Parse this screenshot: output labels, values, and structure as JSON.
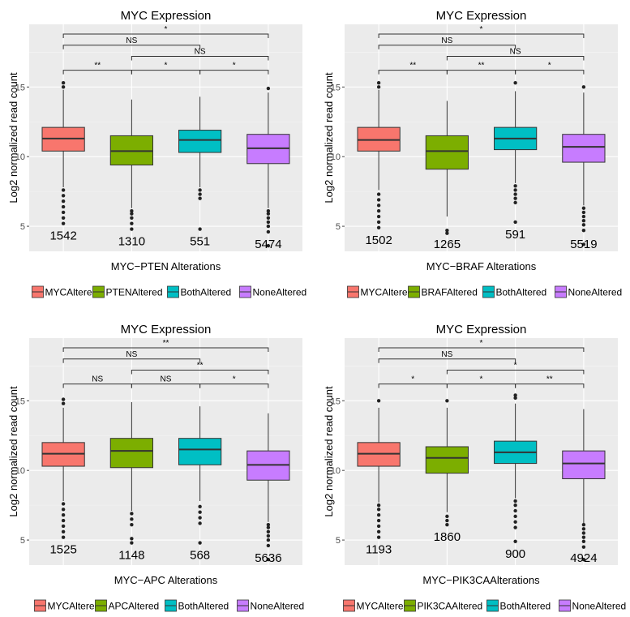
{
  "colors": {
    "panel_bg": "#ebebeb",
    "grid": "#ffffff",
    "box_outline": "#333333",
    "bracket": "#333333",
    "text": "#000000",
    "tick_text": "#4d4d4d",
    "groups": [
      "#f8766d",
      "#7cae00",
      "#00bfc4",
      "#c77cff"
    ]
  },
  "chart_data": [
    {
      "type": "box",
      "title": "MYC Expression",
      "xlabel": "MYC−PTEN Alterations",
      "ylabel": "Log2 normalized read count",
      "ylim": [
        3.2,
        19.5
      ],
      "yticks": [
        5,
        10,
        15
      ],
      "grid": true,
      "legend_position": "bottom",
      "categories": [
        "MYCAltered",
        "PTENAltered",
        "BothAltered",
        "NoneAltered"
      ],
      "counts": [
        "1542",
        "1310",
        "551",
        "5474"
      ],
      "boxes": [
        {
          "low": 7.8,
          "q1": 10.4,
          "median": 11.3,
          "q3": 12.1,
          "high": 14.8,
          "outliers": [
            5.2,
            5.6,
            6.0,
            6.4,
            6.8,
            7.2,
            7.6,
            15.0,
            15.3
          ]
        },
        {
          "low": 6.3,
          "q1": 9.4,
          "median": 10.4,
          "q3": 11.5,
          "high": 14.1,
          "outliers": [
            4.8,
            5.2,
            5.6,
            5.9,
            6.1
          ]
        },
        {
          "low": 7.8,
          "q1": 10.3,
          "median": 11.2,
          "q3": 11.9,
          "high": 14.3,
          "outliers": [
            4.8,
            7.0,
            7.3,
            7.6
          ]
        },
        {
          "low": 6.3,
          "q1": 9.5,
          "median": 10.6,
          "q3": 11.6,
          "high": 14.6,
          "outliers": [
            3.6,
            4.6,
            5.0,
            5.3,
            5.6,
            5.9,
            6.1,
            14.9
          ]
        }
      ],
      "brackets": [
        {
          "from": 0,
          "to": 3,
          "y": 18.8,
          "label": "*"
        },
        {
          "from": 0,
          "to": 2,
          "y": 18.0,
          "label": "NS"
        },
        {
          "from": 1,
          "to": 3,
          "y": 17.2,
          "label": "NS"
        },
        {
          "from": 0,
          "to": 1,
          "y": 16.2,
          "label": "**"
        },
        {
          "from": 1,
          "to": 2,
          "y": 16.2,
          "label": "*"
        },
        {
          "from": 2,
          "to": 3,
          "y": 16.2,
          "label": "*"
        }
      ]
    },
    {
      "type": "box",
      "title": "MYC Expression",
      "xlabel": "MYC−BRAF Alterations",
      "ylabel": "Log2 normalized read count",
      "ylim": [
        3.2,
        19.5
      ],
      "yticks": [
        5,
        10,
        15
      ],
      "grid": true,
      "legend_position": "bottom",
      "categories": [
        "MYCAltered",
        "BRAFAltered",
        "BothAltered",
        "NoneAltered"
      ],
      "counts": [
        "1502",
        "1265",
        "591",
        "5519"
      ],
      "boxes": [
        {
          "low": 7.6,
          "q1": 10.4,
          "median": 11.2,
          "q3": 12.1,
          "high": 14.8,
          "outliers": [
            4.9,
            5.3,
            5.7,
            6.1,
            6.5,
            6.9,
            7.3,
            15.0,
            15.3
          ]
        },
        {
          "low": 5.7,
          "q1": 9.1,
          "median": 10.4,
          "q3": 11.5,
          "high": 14.0,
          "outliers": [
            4.5,
            4.7
          ]
        },
        {
          "low": 8.1,
          "q1": 10.5,
          "median": 11.3,
          "q3": 12.1,
          "high": 14.7,
          "outliers": [
            5.3,
            6.7,
            7.0,
            7.3,
            7.6,
            7.9,
            15.3
          ]
        },
        {
          "low": 6.5,
          "q1": 9.6,
          "median": 10.7,
          "q3": 11.6,
          "high": 14.6,
          "outliers": [
            3.7,
            4.7,
            5.1,
            5.4,
            5.7,
            6.0,
            6.3,
            15.0
          ]
        }
      ],
      "brackets": [
        {
          "from": 0,
          "to": 3,
          "y": 18.8,
          "label": "*"
        },
        {
          "from": 0,
          "to": 2,
          "y": 18.0,
          "label": "NS"
        },
        {
          "from": 1,
          "to": 3,
          "y": 17.2,
          "label": "NS"
        },
        {
          "from": 0,
          "to": 1,
          "y": 16.2,
          "label": "**"
        },
        {
          "from": 1,
          "to": 2,
          "y": 16.2,
          "label": "**"
        },
        {
          "from": 2,
          "to": 3,
          "y": 16.2,
          "label": "*"
        }
      ]
    },
    {
      "type": "box",
      "title": "MYC Expression",
      "xlabel": "MYC−APC Alterations",
      "ylabel": "Log2 normalized read count",
      "ylim": [
        3.2,
        19.5
      ],
      "yticks": [
        5,
        10,
        15
      ],
      "grid": true,
      "legend_position": "bottom",
      "categories": [
        "MYCAltered",
        "APCAltered",
        "BothAltered",
        "NoneAltered"
      ],
      "counts": [
        "1525",
        "1148",
        "568",
        "5636"
      ],
      "boxes": [
        {
          "low": 7.8,
          "q1": 10.3,
          "median": 11.2,
          "q3": 12.0,
          "high": 14.5,
          "outliers": [
            5.2,
            5.6,
            6.0,
            6.4,
            6.8,
            7.2,
            7.6,
            14.8,
            15.1
          ]
        },
        {
          "low": 7.1,
          "q1": 10.2,
          "median": 11.4,
          "q3": 12.3,
          "high": 14.9,
          "outliers": [
            4.8,
            5.1,
            6.1,
            6.5,
            6.9
          ]
        },
        {
          "low": 7.8,
          "q1": 10.4,
          "median": 11.5,
          "q3": 12.3,
          "high": 14.6,
          "outliers": [
            4.8,
            6.2,
            6.6,
            7.0,
            7.4
          ]
        },
        {
          "low": 6.3,
          "q1": 9.3,
          "median": 10.4,
          "q3": 11.4,
          "high": 14.1,
          "outliers": [
            3.6,
            4.6,
            5.0,
            5.3,
            5.6,
            5.9,
            6.1
          ]
        }
      ],
      "brackets": [
        {
          "from": 0,
          "to": 3,
          "y": 18.8,
          "label": "**"
        },
        {
          "from": 0,
          "to": 2,
          "y": 18.0,
          "label": "NS"
        },
        {
          "from": 1,
          "to": 3,
          "y": 17.2,
          "label": "**"
        },
        {
          "from": 0,
          "to": 1,
          "y": 16.2,
          "label": "NS"
        },
        {
          "from": 1,
          "to": 2,
          "y": 16.2,
          "label": "NS"
        },
        {
          "from": 2,
          "to": 3,
          "y": 16.2,
          "label": "*"
        }
      ]
    },
    {
      "type": "box",
      "title": "MYC Expression",
      "xlabel": "MYC−PIK3CAAlterations",
      "ylabel": "Log2 normalized read count",
      "ylim": [
        3.2,
        19.5
      ],
      "yticks": [
        5,
        10,
        15
      ],
      "grid": true,
      "legend_position": "bottom",
      "categories": [
        "MYCAltered",
        "PIK3CAAltered",
        "BothAltered",
        "NoneAltered"
      ],
      "counts": [
        "1193",
        "1860",
        "900",
        "4924"
      ],
      "boxes": [
        {
          "low": 7.7,
          "q1": 10.3,
          "median": 11.2,
          "q3": 12.0,
          "high": 14.5,
          "outliers": [
            5.2,
            5.6,
            6.0,
            6.4,
            6.8,
            7.2,
            7.5,
            15.0
          ]
        },
        {
          "low": 7.0,
          "q1": 9.8,
          "median": 10.9,
          "q3": 11.7,
          "high": 14.5,
          "outliers": [
            6.1,
            6.4,
            6.7,
            15.0
          ]
        },
        {
          "low": 8.0,
          "q1": 10.5,
          "median": 11.3,
          "q3": 12.1,
          "high": 14.8,
          "outliers": [
            4.9,
            5.9,
            6.3,
            6.7,
            7.1,
            7.5,
            7.8,
            15.2,
            15.4
          ]
        },
        {
          "low": 6.2,
          "q1": 9.4,
          "median": 10.5,
          "q3": 11.4,
          "high": 14.4,
          "outliers": [
            3.6,
            4.5,
            4.9,
            5.2,
            5.5,
            5.8,
            6.1
          ]
        }
      ],
      "brackets": [
        {
          "from": 0,
          "to": 3,
          "y": 18.8,
          "label": "*"
        },
        {
          "from": 0,
          "to": 2,
          "y": 18.0,
          "label": "NS"
        },
        {
          "from": 1,
          "to": 3,
          "y": 17.2,
          "label": "*"
        },
        {
          "from": 0,
          "to": 1,
          "y": 16.2,
          "label": "*"
        },
        {
          "from": 1,
          "to": 2,
          "y": 16.2,
          "label": "*"
        },
        {
          "from": 2,
          "to": 3,
          "y": 16.2,
          "label": "**"
        }
      ]
    }
  ]
}
